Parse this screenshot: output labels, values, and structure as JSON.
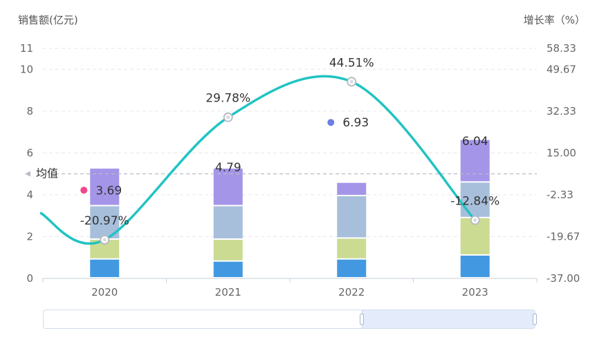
{
  "chart_data": {
    "type": "bar",
    "categories": [
      "2020",
      "2021",
      "2022",
      "2023"
    ],
    "y_left": {
      "title": "销售额(亿元)",
      "ylim": [
        0,
        11
      ],
      "ticks": [
        0,
        2,
        4,
        6,
        8,
        10,
        11
      ]
    },
    "y_right": {
      "title": "增长率（%）",
      "ylim": [
        -37,
        58.33
      ],
      "ticks": [
        "-37.00",
        "-19.67",
        "-2.33",
        "15.00",
        "32.33",
        "49.67",
        "58.33"
      ]
    },
    "stack_segments": [
      [
        0.9,
        0.8,
        0.9,
        1.09
      ],
      [
        0.95,
        1.05,
        1.0,
        1.79
      ],
      [
        1.6,
        1.6,
        2.03,
        1.7
      ],
      [
        1.8,
        1.8,
        0.64,
        2.04
      ]
    ],
    "segment_colors": [
      "#4299e1",
      "#cbdb92",
      "#a7bfdb",
      "#a595e8"
    ],
    "totals": [
      "3.69",
      "4.79",
      "6.93",
      "6.04"
    ],
    "growth_values": [
      -20.97,
      29.78,
      44.51,
      -12.84
    ],
    "growth_labels": [
      "-20.97%",
      "29.78%",
      "44.51%",
      "-12.84%"
    ],
    "line_color": "#21c3c3",
    "average": {
      "label": "均值",
      "value": 5.0
    },
    "markers": [
      {
        "category": "2020",
        "color": "#f2468d"
      },
      {
        "category": "2022",
        "color": "#6b7fe6"
      }
    ],
    "grid": true
  }
}
